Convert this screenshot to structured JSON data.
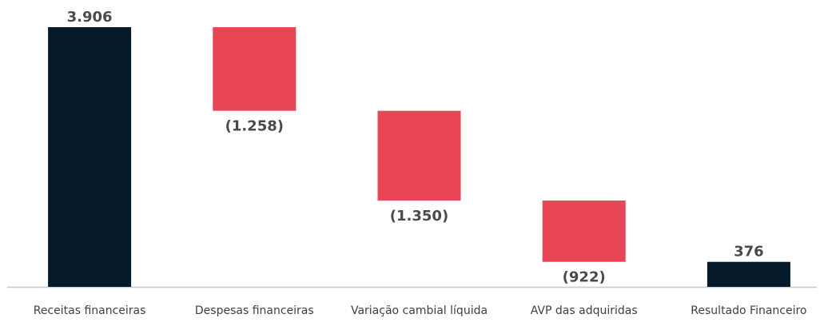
{
  "chart_data": {
    "type": "waterfall",
    "categories": [
      "Receitas financeiras",
      "Despesas financeiras",
      "Variação cambial líquida",
      "AVP das adquiridas",
      "Resultado Financeiro"
    ],
    "values": [
      3906,
      -1258,
      -1350,
      -922,
      376
    ],
    "value_labels": [
      "3.906",
      "(1.258)",
      "(1.350)",
      "(922)",
      "376"
    ],
    "measure": [
      "absolute",
      "relative",
      "relative",
      "relative",
      "total"
    ],
    "colors": {
      "total": "#041a2a",
      "decrease": "#e84655",
      "increase": "#e84655"
    }
  }
}
